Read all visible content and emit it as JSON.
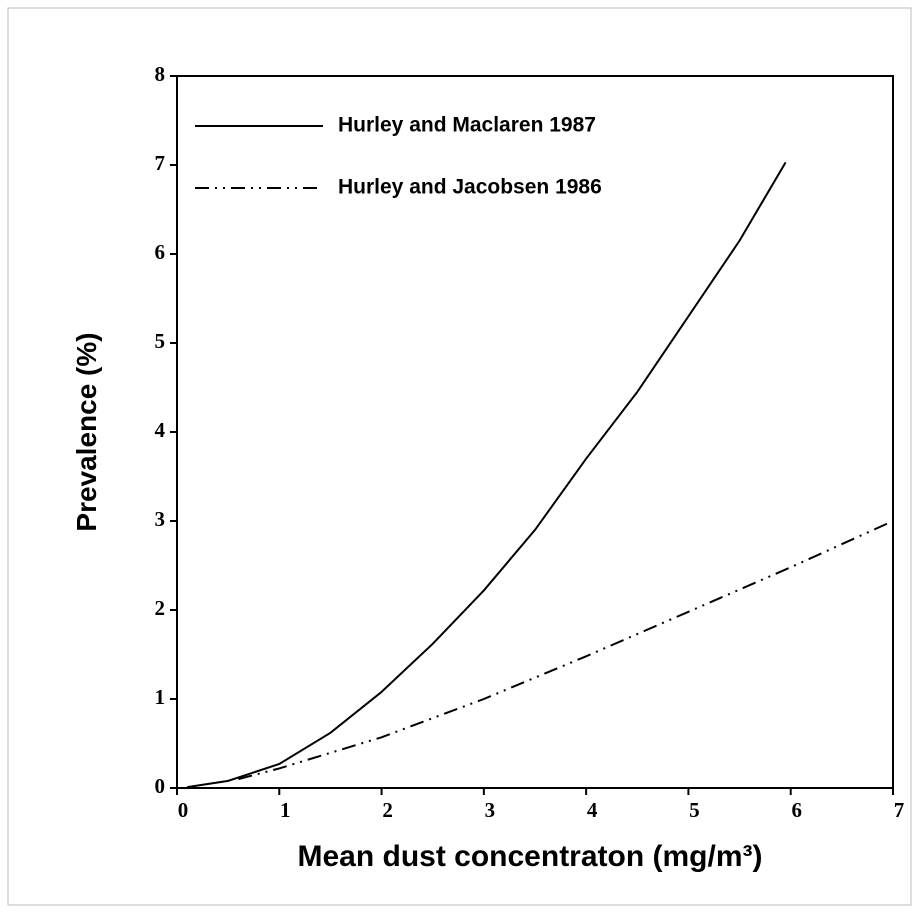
{
  "chart_data": {
    "type": "line",
    "xlabel": "Mean dust concentraton (mg/m³)",
    "ylabel": "Prevalence (%)",
    "xlim": [
      0,
      7
    ],
    "xticks": [
      0,
      1,
      2,
      3,
      4,
      5,
      6,
      7
    ],
    "ylim": [
      0,
      8
    ],
    "yticks": [
      0,
      1,
      2,
      3,
      4,
      5,
      6,
      7,
      8
    ],
    "legend": "upper left",
    "series": [
      {
        "name": "Hurley and Maclaren 1987",
        "color": "#000000",
        "line_style": "solid",
        "x": [
          0.1,
          0.5,
          1,
          1.5,
          2,
          2.5,
          3,
          3.5,
          4,
          4.5,
          5,
          5.5,
          5.95
        ],
        "values": [
          0.01,
          0.08,
          0.27,
          0.62,
          1.08,
          1.62,
          2.22,
          2.9,
          3.7,
          4.45,
          5.3,
          6.15,
          7.03
        ]
      },
      {
        "name": "Hurley and Jacobsen 1986",
        "color": "#000000",
        "line_style": "dashdotdot",
        "x": [
          0.6,
          1,
          2,
          3,
          4,
          5,
          6,
          7
        ],
        "values": [
          0.1,
          0.22,
          0.57,
          1.0,
          1.48,
          1.98,
          2.48,
          3.0
        ]
      }
    ]
  }
}
